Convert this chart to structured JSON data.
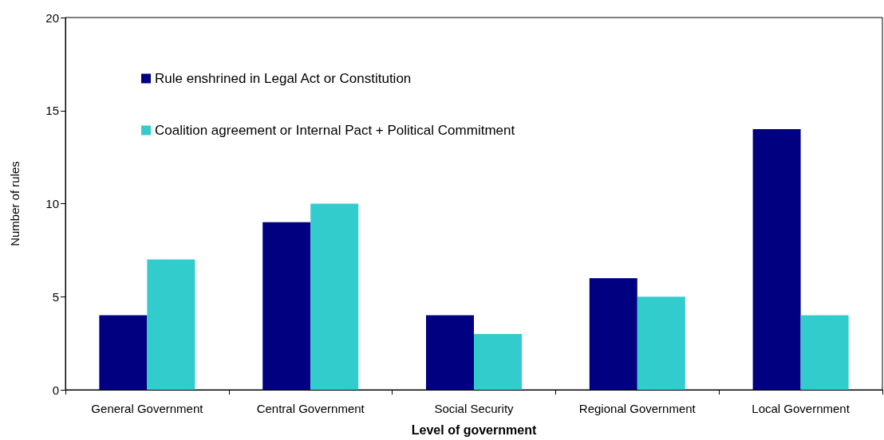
{
  "chart_data": {
    "type": "bar",
    "xlabel": "Level of government",
    "ylabel": "Number of rules",
    "categories": [
      "General Government",
      "Central Government",
      "Social Security",
      "Regional Government",
      "Local Government"
    ],
    "series": [
      {
        "name": "Rule enshrined in Legal Act or Constitution",
        "color": "#000080",
        "values": [
          4,
          9,
          4,
          6,
          14
        ]
      },
      {
        "name": "Coalition agreement or Internal Pact + Political Commitment",
        "color": "#33cccc",
        "values": [
          7,
          10,
          3,
          5,
          4
        ]
      }
    ],
    "ylim": [
      0,
      20
    ],
    "yticks": [
      0,
      5,
      10,
      15,
      20
    ],
    "grid": false,
    "legend": "top left"
  }
}
